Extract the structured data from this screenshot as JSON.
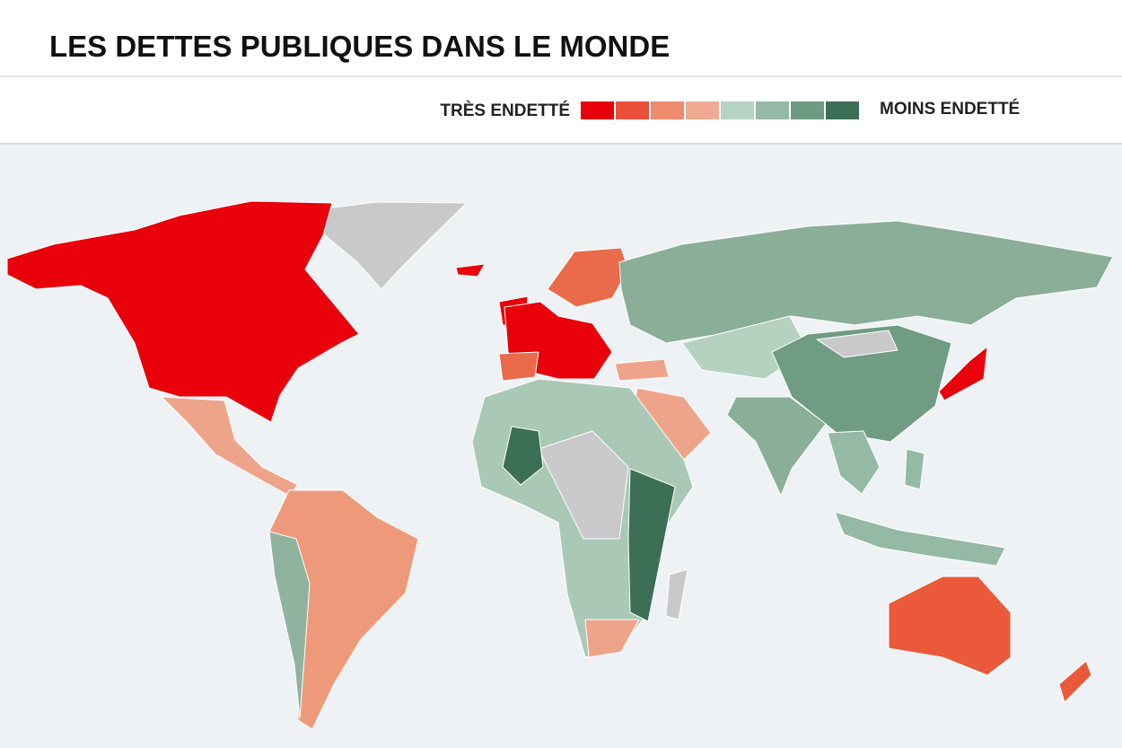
{
  "header": {
    "title": "LES DETTES PUBLIQUES DANS LE MONDE"
  },
  "legend": {
    "high_label": "TRÈS ENDETTÉ",
    "low_label": "MOINS ENDETTÉ",
    "colors": [
      "#e8000b",
      "#ea4f3a",
      "#ee8a6e",
      "#f0a992",
      "#b6d3c3",
      "#94b9a4",
      "#6e9b82",
      "#3d6e56"
    ]
  }
}
